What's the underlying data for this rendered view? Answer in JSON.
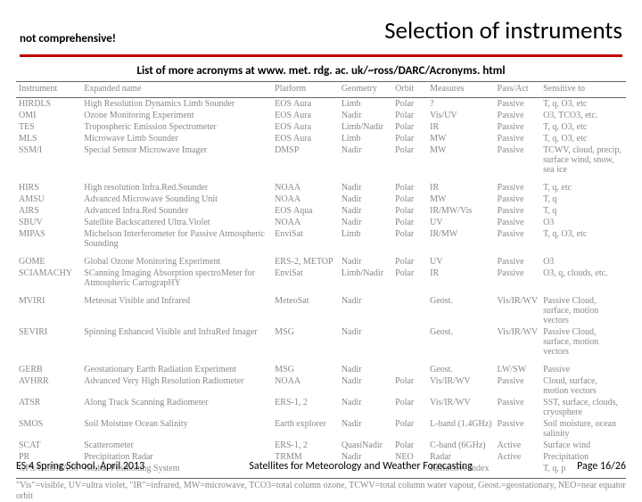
{
  "header": {
    "note": "not comprehensive!",
    "title": "Selection of instruments"
  },
  "subtitle": "List of more acronyms at www. met. rdg. ac. uk/~ross/DARC/Acronyms. html",
  "table": {
    "columns": [
      "Instrument",
      "Expanded name",
      "Platform",
      "Geometry",
      "Orbit",
      "Measures",
      "Pass/Act",
      "Sensitive to"
    ],
    "groups": [
      {
        "rows": [
          [
            "HIRDLS",
            "High Resolution Dynamics Limb Sounder",
            "EOS Aura",
            "Limb",
            "Polar",
            "?",
            "Passive",
            "T, q, O3, etc"
          ],
          [
            "OMI",
            "Ozone Monitoring Experiment",
            "EOS Aura",
            "Nadir",
            "Polar",
            "Vis/UV",
            "Passive",
            "O3, TCO3, etc."
          ],
          [
            "TES",
            "Tropospheric Emission Spectrometer",
            "EOS Aura",
            "Limb/Nadir",
            "Polar",
            "IR",
            "Passive",
            "T, q, O3, etc"
          ],
          [
            "MLS",
            "Microwave Limb Sounder",
            "EOS Aura",
            "Limb",
            "Polar",
            "MW",
            "Passive",
            "T, q, O3, etc"
          ],
          [
            "SSM/I",
            "Special Sensor Microwave Imager",
            "DMSP",
            "Nadir",
            "Polar",
            "MW",
            "Passive",
            "TCWV, cloud, precip, surface wind, snow, sea ice"
          ]
        ]
      },
      {
        "rows": [
          [
            "HIRS",
            "High resolution Infra.Red.Sounder",
            "NOAA",
            "Nadir",
            "Polar",
            "IR",
            "Passive",
            "T, q, etc"
          ],
          [
            "AMSU",
            "Advanced Microwave Sounding Unit",
            "NOAA",
            "Nadir",
            "Polar",
            "MW",
            "Passive",
            "T, q"
          ],
          [
            "AIRS",
            "Advanced Infra.Red Sounder",
            "EOS Aqua",
            "Nadir",
            "Polar",
            "IR/MW/Vis",
            "Passive",
            "T, q"
          ],
          [
            "SBUV",
            "Satellite Backscattered Ultra.Violet",
            "NOAA",
            "Nadir",
            "Polar",
            "UV",
            "Passive",
            "O3"
          ],
          [
            "MIPAS",
            "Michelson Interferometer for Passive Atmospheric Sounding",
            "EnviSat",
            "Limb",
            "Polar",
            "IR/MW",
            "Passive",
            "T, q, O3, etc"
          ]
        ]
      },
      {
        "rows": [
          [
            "GOME",
            "Global Ozone Monitoring Experiment",
            "ERS-2, METOP",
            "Nadir",
            "Polar",
            "UV",
            "Passive",
            "O3"
          ],
          [
            "SCIAMACHY",
            "SCanning Imaging Absorption spectroMeter for Atmospheric CartograpHY",
            "EnviSat",
            "Limb/Nadir",
            "Polar",
            "IR",
            "Passive",
            "O3, q, clouds, etc."
          ]
        ]
      },
      {
        "rows": [
          [
            "MVIRI",
            "Meteosat Visible and Infrared",
            "MeteoSat",
            "Nadir",
            "",
            "Geost.",
            "Vis/IR/WV",
            "Passive  Cloud, surface, motion vectors"
          ],
          [
            "SEVIRI",
            "Spinning Enhanced Visible and InfraRed Imager",
            "MSG",
            "Nadir",
            "",
            "Geost.",
            "Vis/IR/WV",
            "Passive  Cloud, surface, motion vectors"
          ]
        ]
      },
      {
        "rows": [
          [
            "GERB",
            "Geostationary Earth Radiation Experiment",
            "MSG",
            "Nadir",
            "",
            "Geost.",
            "LW/SW",
            "Passive"
          ],
          [
            "AVHRR",
            "Advanced Very High Resolution Radiometer",
            "NOAA",
            "Nadir",
            "Polar",
            "Vis/IR/WV",
            "Passive",
            "Cloud, surface, motion vectors"
          ],
          [
            "ATSR",
            "Along Track Scanning Radiometer",
            "ERS-1, 2",
            "Nadir",
            "Polar",
            "Vis/IR/WV",
            "Passive",
            "SST, surface, clouds, cryosphere"
          ],
          [
            "SMOS",
            "Soil Moisture Ocean Salinity",
            "Earth explorer",
            "Nadir",
            "Polar",
            "L-band (1.4GHz)",
            "Passive",
            "Soil moisture, ocean salinity"
          ],
          [
            "SCAT",
            "Scatterometer",
            "ERS-1, 2",
            "QuasiNadir",
            "Polar",
            "C-band (6GHz)",
            "Active",
            "Surface wind"
          ],
          [
            "PR",
            "Precipitation Radar",
            "TRMM",
            "Nadir",
            "NEO",
            "Radar",
            "Active",
            "Precipitation"
          ],
          [
            "GPS/GLONASS",
            "Global Positioning System",
            "",
            "",
            "",
            "Refractive index",
            "",
            "T, q, p"
          ]
        ]
      }
    ]
  },
  "footnote": "\"Vis\"=visible, UV=ultra violet, \"IR\"=infrared, MW=microwave, TCO3=total column ozone, TCWV=total column water vapour, Geost.=geostationary, NEO=near equator orbit",
  "footer": {
    "left": "ES 4 Spring School, April 2013",
    "mid": "Satellites for Meteorology and Weather Forecasting",
    "right": "Page 16/26"
  },
  "colors": {
    "underline": "#c00000",
    "table_text": "#888888",
    "rule": "#666666"
  }
}
